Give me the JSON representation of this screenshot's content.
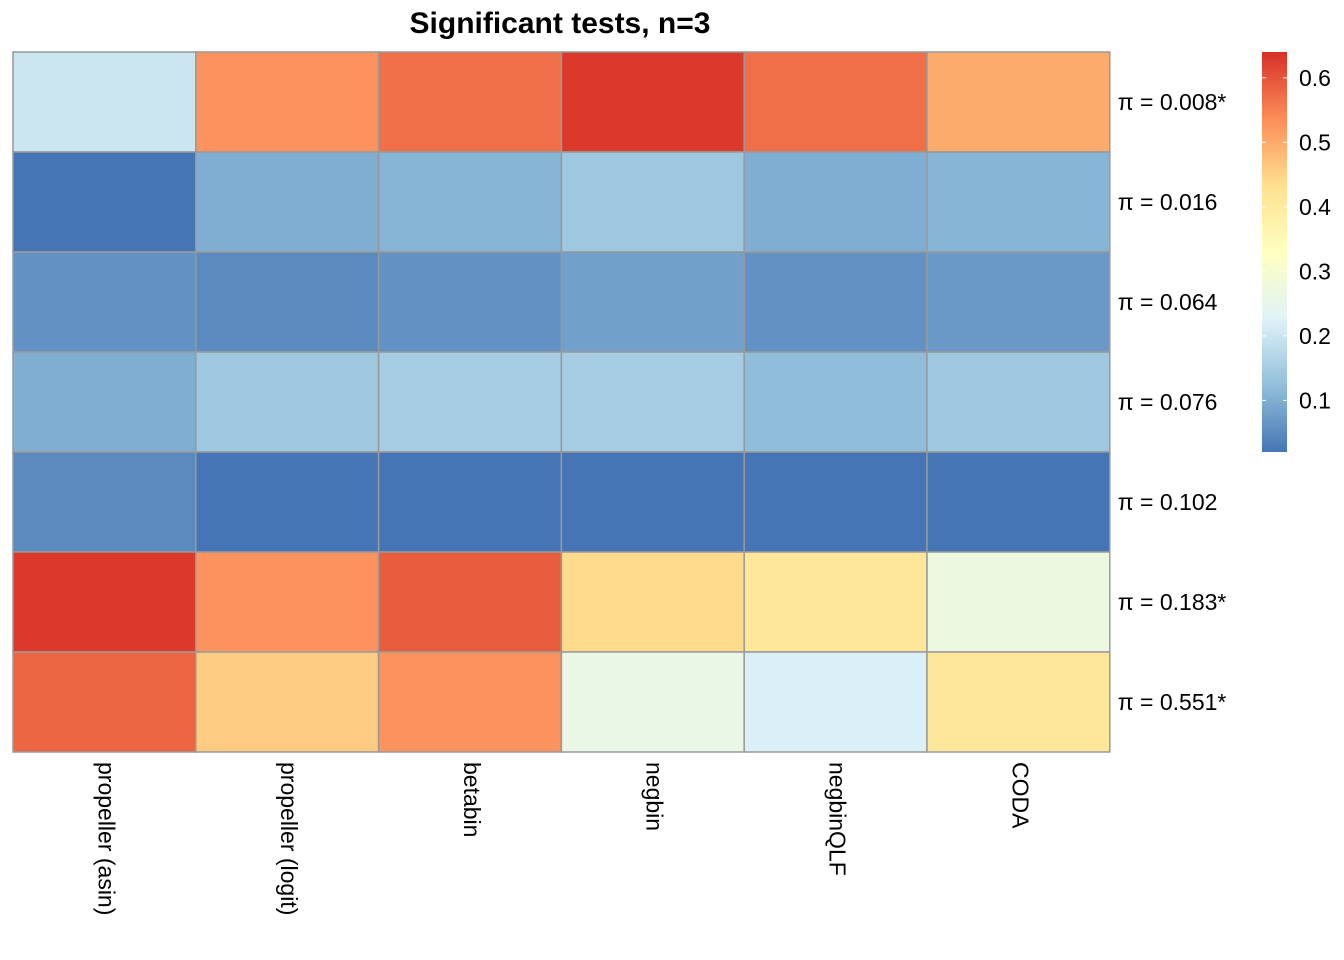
{
  "chart_data": {
    "type": "heatmap",
    "title": "Significant tests, n=3",
    "columns": [
      "propeller (asin)",
      "propeller (logit)",
      "betabin",
      "negbin",
      "negbinQLF",
      "CODA"
    ],
    "rows": [
      "π = 0.008*",
      "π = 0.016",
      "π = 0.064",
      "π = 0.076",
      "π = 0.102",
      "π = 0.183*",
      "π = 0.551*"
    ],
    "values": [
      [
        0.2,
        0.53,
        0.57,
        0.63,
        0.57,
        0.5
      ],
      [
        0.02,
        0.1,
        0.11,
        0.14,
        0.1,
        0.11
      ],
      [
        0.06,
        0.05,
        0.06,
        0.08,
        0.06,
        0.07
      ],
      [
        0.1,
        0.14,
        0.15,
        0.15,
        0.12,
        0.14
      ],
      [
        0.05,
        0.02,
        0.02,
        0.02,
        0.02,
        0.02
      ],
      [
        0.63,
        0.53,
        0.59,
        0.44,
        0.41,
        0.27
      ],
      [
        0.58,
        0.46,
        0.53,
        0.26,
        0.22,
        0.41
      ]
    ],
    "color_range": [
      0.02,
      0.64
    ],
    "color_scale": [
      "#4575B4",
      "#91BFDB",
      "#E0F3F8",
      "#FFFFBF",
      "#FEE090",
      "#FC8D59",
      "#D73027"
    ],
    "legend": {
      "placement": "right",
      "ticks": [
        "0.1",
        "0.2",
        "0.3",
        "0.4",
        "0.5",
        "0.6"
      ],
      "tick_values": [
        0.1,
        0.2,
        0.3,
        0.4,
        0.5,
        0.6
      ]
    },
    "grid": true,
    "grid_color": "#999999"
  }
}
